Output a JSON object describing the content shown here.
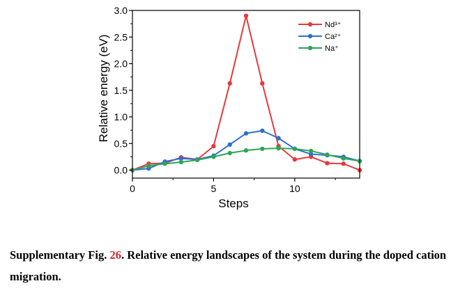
{
  "chart_data": {
    "type": "line",
    "xlabel": "Steps",
    "ylabel": "Relative energy (eV)",
    "xlim": [
      0,
      14
    ],
    "ylim": [
      -0.15,
      3.0
    ],
    "x_ticks": [
      0,
      5,
      10
    ],
    "y_ticks": [
      0.0,
      0.5,
      1.0,
      1.5,
      2.0,
      2.5,
      3.0
    ],
    "x_tick_labels": [
      "0",
      "5",
      "10"
    ],
    "y_tick_labels": [
      "0.0",
      "0.5",
      "1.0",
      "1.5",
      "2.0",
      "2.5",
      "3.0"
    ],
    "x": [
      0,
      1,
      2,
      3,
      4,
      5,
      6,
      7,
      8,
      9,
      10,
      11,
      12,
      13,
      14
    ],
    "legend_position": "top-right",
    "grid": false,
    "series": [
      {
        "name": "Nd³⁺",
        "color": "#e8393c",
        "values": [
          0.0,
          0.12,
          0.13,
          0.24,
          0.2,
          0.45,
          1.63,
          2.9,
          1.63,
          0.45,
          0.2,
          0.25,
          0.13,
          0.12,
          0.0
        ]
      },
      {
        "name": "Ca²⁺",
        "color": "#2f6fcf",
        "values": [
          0.0,
          0.03,
          0.16,
          0.22,
          0.2,
          0.27,
          0.48,
          0.69,
          0.74,
          0.6,
          0.4,
          0.3,
          0.28,
          0.25,
          0.17
        ]
      },
      {
        "name": "Na⁺",
        "color": "#2ea556",
        "values": [
          0.0,
          0.08,
          0.12,
          0.15,
          0.19,
          0.25,
          0.32,
          0.37,
          0.4,
          0.41,
          0.4,
          0.36,
          0.29,
          0.22,
          0.17
        ]
      }
    ]
  },
  "caption": {
    "prefix": "Supplementary Fig. ",
    "number": "26",
    "text": ". Relative energy landscapes of the system during the doped cation migration."
  }
}
